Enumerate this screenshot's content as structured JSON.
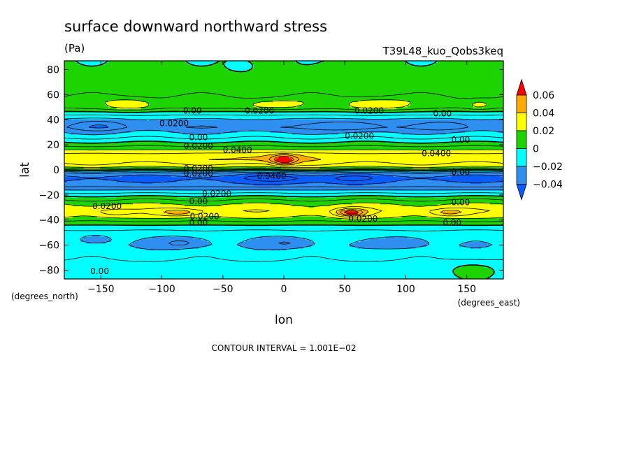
{
  "chart_data": {
    "type": "heatmap",
    "title": "surface downward northward stress",
    "units": "(Pa)",
    "run_label": "T39L48_kuo_Qobs3keq",
    "xlabel": "lon",
    "ylabel": "lat",
    "x_units": "(degrees_east)",
    "y_units": "(degrees_north)",
    "xlim": [
      -180,
      180
    ],
    "ylim": [
      -87,
      87
    ],
    "x_ticks": [
      {
        "value": -150,
        "label": "−150"
      },
      {
        "value": -100,
        "label": "−100"
      },
      {
        "value": -50,
        "label": "−50"
      },
      {
        "value": 0,
        "label": "0"
      },
      {
        "value": 50,
        "label": "50"
      },
      {
        "value": 100,
        "label": "100"
      },
      {
        "value": 150,
        "label": "150"
      }
    ],
    "y_ticks": [
      {
        "value": 80,
        "label": "80"
      },
      {
        "value": 60,
        "label": "60"
      },
      {
        "value": 40,
        "label": "40"
      },
      {
        "value": 20,
        "label": "20"
      },
      {
        "value": 0,
        "label": "0"
      },
      {
        "value": -20,
        "label": "−20"
      },
      {
        "value": -40,
        "label": "−40"
      },
      {
        "value": -60,
        "label": "−60"
      },
      {
        "value": -80,
        "label": "−80"
      }
    ],
    "contour_interval_text": "CONTOUR INTERVAL = 1.001E−02",
    "levels": [
      {
        "min": null,
        "max": -0.04,
        "color": "#0b5cff"
      },
      {
        "min": -0.04,
        "max": -0.02,
        "color": "#2e8ff0"
      },
      {
        "min": -0.02,
        "max": 0.0,
        "color": "#00ffff"
      },
      {
        "min": 0.0,
        "max": 0.02,
        "color": "#1ed400"
      },
      {
        "min": 0.02,
        "max": 0.04,
        "color": "#ffff00"
      },
      {
        "min": 0.04,
        "max": 0.06,
        "color": "#ffaa00"
      },
      {
        "min": 0.06,
        "max": null,
        "color": "#ff0000"
      }
    ],
    "colorbar_labels": [
      "0.06",
      "0.04",
      "0.02",
      "0",
      "−0.02",
      "−0.04"
    ],
    "zonal_bands": [
      {
        "lat": -87,
        "value": -0.005
      },
      {
        "lat": -75,
        "value": -0.008
      },
      {
        "lat": -60,
        "value": -0.018
      },
      {
        "lat": -50,
        "value": -0.014
      },
      {
        "lat": -44,
        "value": 0.0
      },
      {
        "lat": -38,
        "value": 0.02
      },
      {
        "lat": -33,
        "value": 0.028
      },
      {
        "lat": -28,
        "value": 0.022
      },
      {
        "lat": -22,
        "value": 0.004
      },
      {
        "lat": -18,
        "value": -0.012
      },
      {
        "lat": -12,
        "value": -0.036
      },
      {
        "lat": -6,
        "value": -0.044
      },
      {
        "lat": -2,
        "value": -0.03
      },
      {
        "lat": 0,
        "value": 0.0
      },
      {
        "lat": 3,
        "value": 0.025
      },
      {
        "lat": 8,
        "value": 0.036
      },
      {
        "lat": 12,
        "value": 0.034
      },
      {
        "lat": 17,
        "value": 0.016
      },
      {
        "lat": 22,
        "value": 0.0
      },
      {
        "lat": 27,
        "value": -0.014
      },
      {
        "lat": 34,
        "value": -0.028
      },
      {
        "lat": 40,
        "value": -0.022
      },
      {
        "lat": 45,
        "value": -0.006
      },
      {
        "lat": 50,
        "value": 0.012
      },
      {
        "lat": 55,
        "value": 0.014
      },
      {
        "lat": 62,
        "value": 0.006
      },
      {
        "lat": 72,
        "value": 0.004
      },
      {
        "lat": 87,
        "value": 0.002
      }
    ],
    "features": [
      {
        "lon": 0,
        "lat": 8,
        "dlon": 10,
        "dlat": 4,
        "amp": 0.034
      },
      {
        "lon": -15,
        "lat": 9,
        "dlon": 40,
        "dlat": 4,
        "amp": 0.008
      },
      {
        "lon": 55,
        "lat": -34,
        "dlon": 12,
        "dlat": 3,
        "amp": 0.04
      },
      {
        "lon": -85,
        "lat": -34,
        "dlon": 18,
        "dlat": 3,
        "amp": 0.02
      },
      {
        "lon": 135,
        "lat": -34,
        "dlon": 15,
        "dlat": 3,
        "amp": 0.018
      },
      {
        "lon": -140,
        "lat": -34,
        "dlon": 15,
        "dlat": 3,
        "amp": 0.01
      },
      {
        "lon": -82,
        "lat": -58,
        "dlon": 22,
        "dlat": 5,
        "amp": -0.016
      },
      {
        "lon": 5,
        "lat": -58,
        "dlon": 22,
        "dlat": 5,
        "amp": -0.014
      },
      {
        "lon": 100,
        "lat": -58,
        "dlon": 20,
        "dlat": 5,
        "amp": -0.014
      },
      {
        "lon": -155,
        "lat": -55,
        "dlon": 15,
        "dlat": 4,
        "amp": -0.012
      },
      {
        "lon": -5,
        "lat": -7,
        "dlon": 30,
        "dlat": 4,
        "amp": -0.012
      },
      {
        "lon": 55,
        "lat": -7,
        "dlon": 20,
        "dlat": 4,
        "amp": -0.01
      },
      {
        "lon": -150,
        "lat": 35,
        "dlon": 20,
        "dlat": 4,
        "amp": -0.012
      },
      {
        "lon": 55,
        "lat": 35,
        "dlon": 25,
        "dlat": 4,
        "amp": -0.014
      },
      {
        "lon": 135,
        "lat": 35,
        "dlon": 20,
        "dlat": 4,
        "amp": -0.01
      },
      {
        "lon": -15,
        "lat": 35,
        "dlon": 20,
        "dlat": 4,
        "amp": -0.004
      },
      {
        "lon": 75,
        "lat": 52,
        "dlon": 25,
        "dlat": 5,
        "amp": 0.018
      },
      {
        "lon": -125,
        "lat": 52,
        "dlon": 20,
        "dlat": 5,
        "amp": 0.016
      },
      {
        "lon": -10,
        "lat": 52,
        "dlon": 25,
        "dlat": 4,
        "amp": 0.014
      },
      {
        "lon": 160,
        "lat": 52,
        "dlon": 12,
        "dlat": 4,
        "amp": 0.012
      },
      {
        "lon": -35,
        "lat": 83,
        "dlon": 10,
        "dlat": 5,
        "amp": -0.012
      },
      {
        "lon": -40,
        "lat": 74,
        "dlon": 14,
        "dlat": 4,
        "amp": 0.004
      },
      {
        "lon": 40,
        "lat": 80,
        "dlon": 15,
        "dlat": 5,
        "amp": 0.004
      },
      {
        "lon": 155,
        "lat": -80,
        "dlon": 20,
        "dlat": 6,
        "amp": 0.012
      }
    ],
    "contour_labels": [
      {
        "text": "0.0200",
        "lon": -90,
        "lat": 37
      },
      {
        "text": "0.00",
        "lon": -75,
        "lat": 47
      },
      {
        "text": "0.0200",
        "lon": -20,
        "lat": 47
      },
      {
        "text": "0.0200",
        "lon": 70,
        "lat": 47
      },
      {
        "text": "0.00",
        "lon": 130,
        "lat": 45
      },
      {
        "text": "0.00",
        "lon": -70,
        "lat": 26
      },
      {
        "text": "0.0200",
        "lon": -70,
        "lat": 19
      },
      {
        "text": "0.0400",
        "lon": -38,
        "lat": 16
      },
      {
        "text": "0.0200",
        "lon": 62,
        "lat": 27
      },
      {
        "text": "0.0400",
        "lon": 125,
        "lat": 13
      },
      {
        "text": "0.00",
        "lon": 145,
        "lat": 24
      },
      {
        "text": "0.0200",
        "lon": -70,
        "lat": 1
      },
      {
        "text": "0.0200",
        "lon": -70,
        "lat": -3
      },
      {
        "text": "0.0400",
        "lon": -10,
        "lat": -5
      },
      {
        "text": "0.00",
        "lon": 145,
        "lat": -2
      },
      {
        "text": "0.0200",
        "lon": -55,
        "lat": -19
      },
      {
        "text": "0.00",
        "lon": -70,
        "lat": -25
      },
      {
        "text": "0.0200",
        "lon": -145,
        "lat": -29
      },
      {
        "text": "0.00",
        "lon": 145,
        "lat": -26
      },
      {
        "text": "0.0200",
        "lon": -65,
        "lat": -37
      },
      {
        "text": "0.00",
        "lon": -70,
        "lat": -42
      },
      {
        "text": "0.0200",
        "lon": 65,
        "lat": -39
      },
      {
        "text": "0.00",
        "lon": 138,
        "lat": -42
      },
      {
        "text": "0.00",
        "lon": -151,
        "lat": -81
      }
    ]
  }
}
